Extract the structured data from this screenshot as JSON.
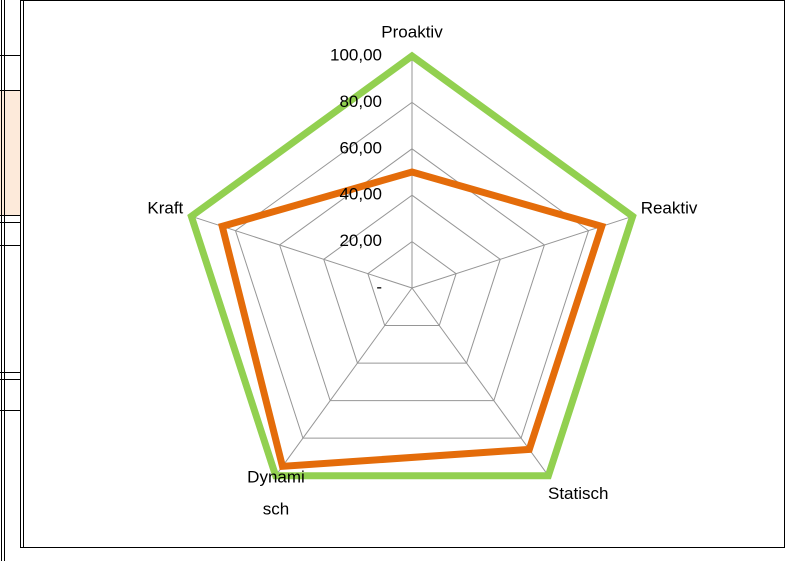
{
  "chart_data": {
    "type": "radar",
    "categories": [
      "Proaktiv",
      "Reaktiv",
      "Statisch",
      "Dynami\nsch",
      "Kraft"
    ],
    "series": [
      {
        "color": "#92d050",
        "values": [
          100,
          100,
          100,
          100,
          100
        ]
      },
      {
        "color": "#e46c0a",
        "values": [
          50,
          86,
          86,
          95,
          86
        ]
      }
    ],
    "rlim": [
      0,
      100
    ],
    "rticks": [
      {
        "value": 0,
        "label": "-"
      },
      {
        "value": 20,
        "label": "20,00"
      },
      {
        "value": 40,
        "label": "40,00"
      },
      {
        "value": 60,
        "label": "60,00"
      },
      {
        "value": 80,
        "label": "80,00"
      },
      {
        "value": 100,
        "label": "100,00"
      }
    ],
    "grid": true
  }
}
